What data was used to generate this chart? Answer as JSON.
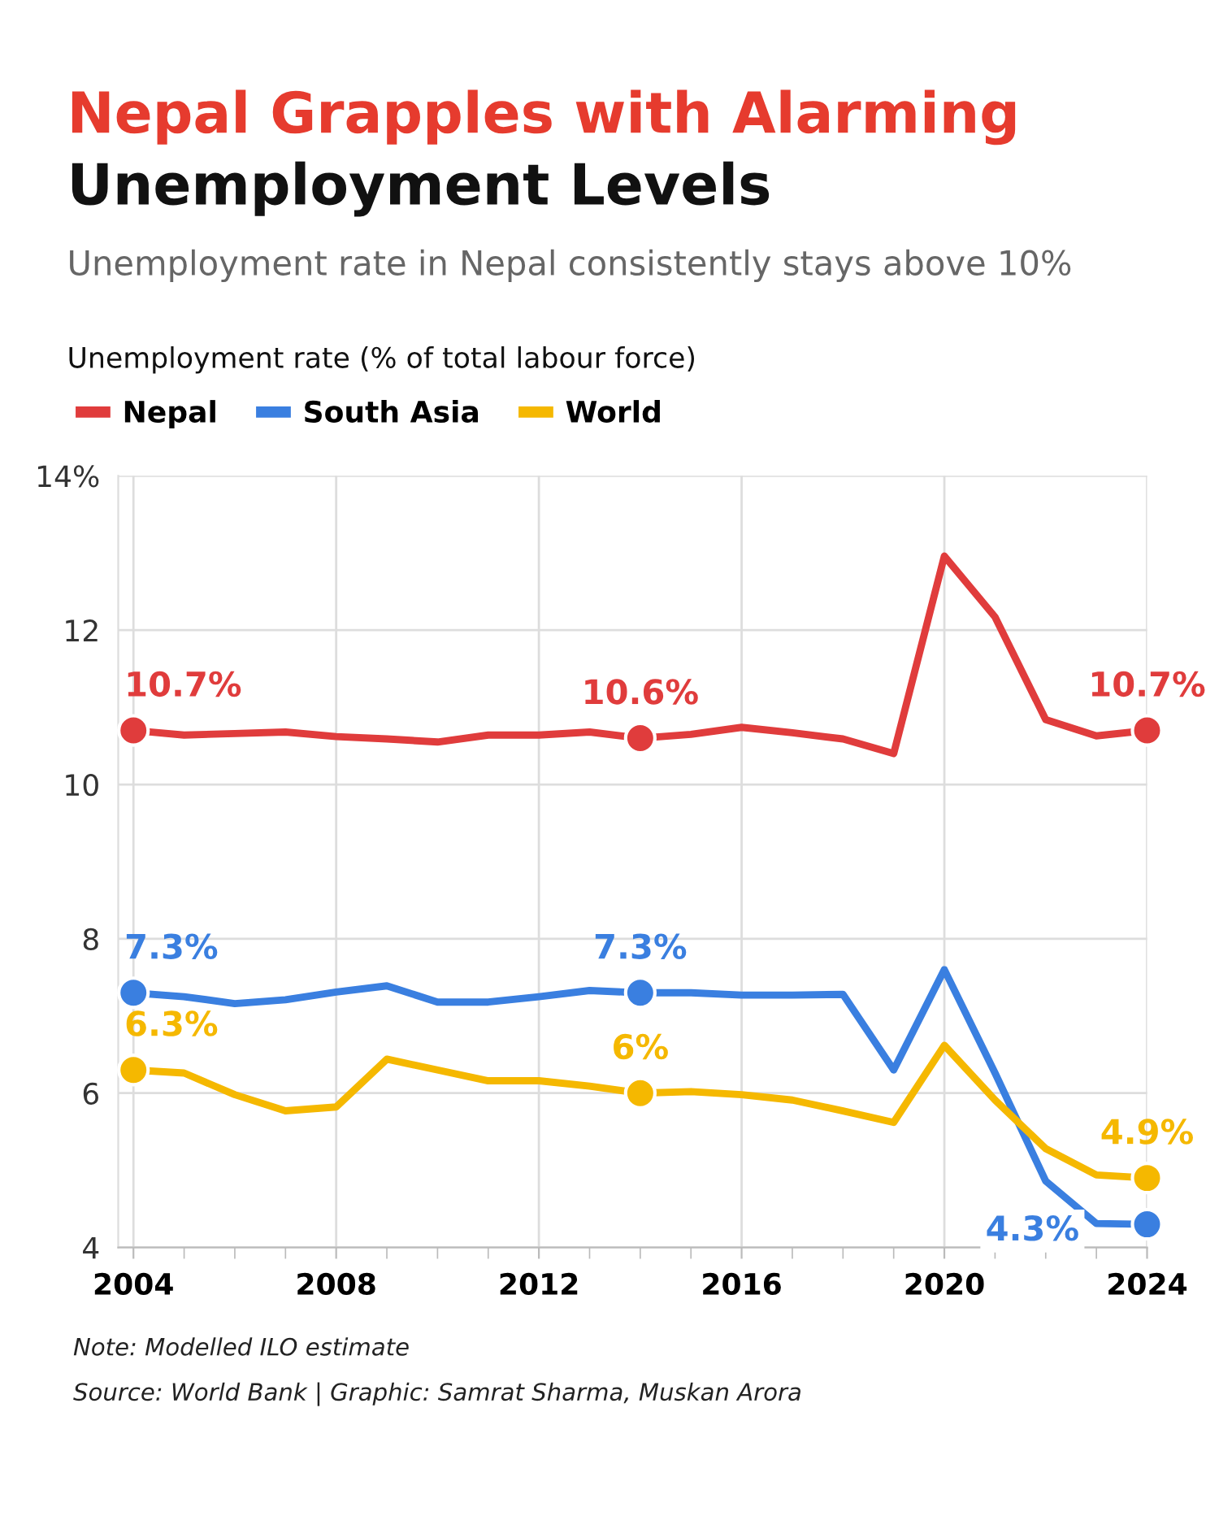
{
  "chart_data": {
    "type": "line",
    "title": "Nepal Grapples with Alarming\nUnemployment Levels",
    "subtitle": "Unemployment rate in Nepal consistently stays above 10%",
    "ylabel": "Unemployment rate (% of total labour force)",
    "x": [
      2004,
      2005,
      2006,
      2007,
      2008,
      2009,
      2010,
      2011,
      2012,
      2013,
      2014,
      2015,
      2016,
      2017,
      2018,
      2019,
      2020,
      2021,
      2022,
      2023,
      2024
    ],
    "series": [
      {
        "name": "Nepal",
        "color": "#e03c3c",
        "values": [
          10.7,
          10.64,
          10.66,
          10.68,
          10.62,
          10.59,
          10.55,
          10.64,
          10.64,
          10.68,
          10.6,
          10.65,
          10.74,
          10.67,
          10.59,
          10.4,
          12.96,
          12.17,
          10.84,
          10.63,
          10.7
        ],
        "value_labels": [
          "10.7%",
          null,
          null,
          null,
          null,
          null,
          null,
          null,
          null,
          null,
          "10.6%",
          null,
          null,
          null,
          null,
          null,
          null,
          null,
          null,
          null,
          "10.7%"
        ]
      },
      {
        "name": "South Asia",
        "color": "#3a7fe0",
        "values": [
          7.3,
          7.25,
          7.16,
          7.21,
          7.31,
          7.39,
          7.18,
          7.18,
          7.25,
          7.33,
          7.3,
          7.3,
          7.27,
          7.27,
          7.28,
          6.3,
          7.6,
          6.26,
          4.86,
          4.31,
          4.3
        ],
        "value_labels": [
          "7.3%",
          null,
          null,
          null,
          null,
          null,
          null,
          null,
          null,
          null,
          "7.3%",
          null,
          null,
          null,
          null,
          null,
          null,
          null,
          null,
          null,
          "4.3%"
        ]
      },
      {
        "name": "World",
        "color": "#f5b800",
        "values": [
          6.3,
          6.26,
          5.98,
          5.77,
          5.82,
          6.44,
          6.3,
          6.16,
          6.16,
          6.09,
          6.0,
          6.02,
          5.98,
          5.91,
          5.77,
          5.62,
          6.62,
          5.91,
          5.28,
          4.94,
          4.9
        ],
        "value_labels": [
          "6.3%",
          null,
          null,
          null,
          null,
          null,
          null,
          null,
          null,
          null,
          "6%",
          null,
          null,
          null,
          null,
          null,
          null,
          null,
          null,
          null,
          "4.9%"
        ]
      }
    ],
    "xlim": [
      2003.7,
      2024
    ],
    "xticks": [
      2004,
      2008,
      2012,
      2016,
      2020,
      2024
    ],
    "ylim": [
      4,
      14
    ],
    "yticks": [
      4,
      6,
      8,
      10,
      12,
      {
        "value": 14,
        "label": "14%"
      }
    ],
    "grid": true,
    "legend": "top left",
    "annotations": [
      "Note: Modelled ILO estimate",
      "Source: World Bank | Graphic: Samrat Sharma, Muskan Arora"
    ]
  }
}
